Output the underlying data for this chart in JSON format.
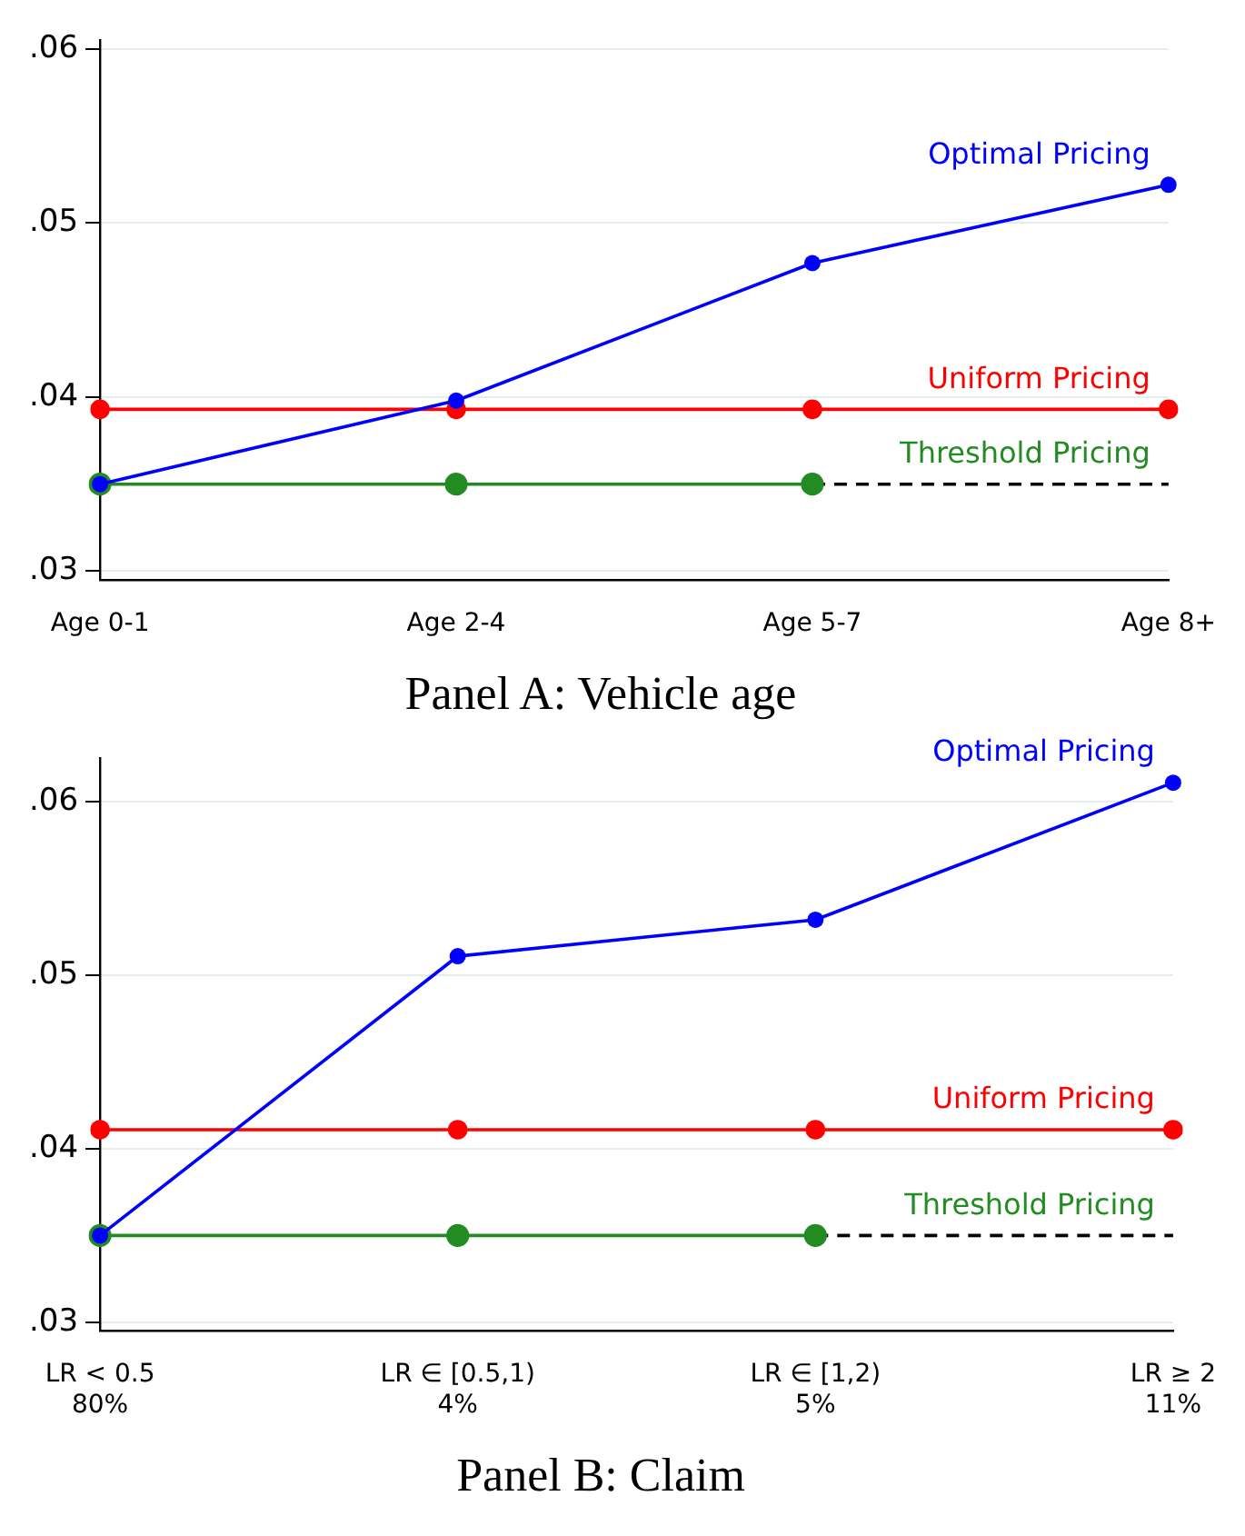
{
  "chart_data": [
    {
      "type": "line",
      "title": "Panel A: Vehicle age",
      "categories": [
        "Age 0-1",
        "Age 2-4",
        "Age 5-7",
        "Age 8+"
      ],
      "series": [
        {
          "name": "Optimal Pricing",
          "color": "#0000ff",
          "values": [
            0.035,
            0.0398,
            0.0477,
            0.0522
          ]
        },
        {
          "name": "Uniform Pricing",
          "color": "#ff0000",
          "values": [
            0.0393,
            0.0393,
            0.0393,
            0.0393
          ]
        },
        {
          "name": "Threshold Pricing",
          "color": "#228b22",
          "values": [
            0.035,
            0.035,
            0.035,
            null
          ]
        },
        {
          "color": "#000000",
          "values": [
            null,
            null,
            0.035,
            0.035
          ],
          "line_style": "dashed",
          "marker": "none"
        }
      ],
      "ylim": [
        0.0295,
        0.0605
      ],
      "yticks": [
        {
          "value": 0.03,
          "label": ".03"
        },
        {
          "value": 0.04,
          "label": ".04"
        },
        {
          "value": 0.05,
          "label": ".05"
        },
        {
          "value": 0.06,
          "label": ".06"
        }
      ],
      "grid": "y",
      "legend": false,
      "marker": "circle"
    },
    {
      "type": "line",
      "title": "Panel B: Claim",
      "categories": [
        "LR < 0.5\n80%",
        "LR ∈ [0.5,1)\n4%",
        "LR ∈ [1,2)\n5%",
        "LR ≥ 2\n11%"
      ],
      "series": [
        {
          "name": "Optimal Pricing",
          "color": "#0000ff",
          "values": [
            0.035,
            0.0511,
            0.0532,
            0.0611
          ]
        },
        {
          "name": "Uniform Pricing",
          "color": "#ff0000",
          "values": [
            0.0411,
            0.0411,
            0.0411,
            0.0411
          ]
        },
        {
          "name": "Threshold Pricing",
          "color": "#228b22",
          "values": [
            0.035,
            0.035,
            0.035,
            null
          ]
        },
        {
          "color": "#000000",
          "values": [
            null,
            null,
            0.035,
            0.035
          ],
          "line_style": "dashed",
          "marker": "none"
        }
      ],
      "ylim": [
        0.0295,
        0.0625
      ],
      "yticks": [
        {
          "value": 0.03,
          "label": ".03"
        },
        {
          "value": 0.04,
          "label": ".04"
        },
        {
          "value": 0.05,
          "label": ".05"
        },
        {
          "value": 0.06,
          "label": ".06"
        }
      ],
      "grid": "y",
      "legend": false,
      "marker": "circle"
    }
  ]
}
